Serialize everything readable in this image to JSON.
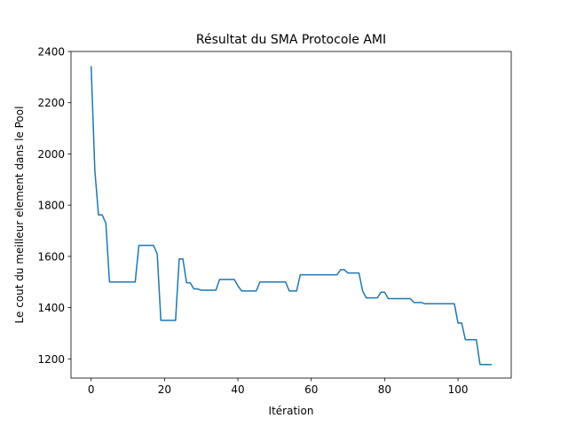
{
  "chart_data": {
    "type": "line",
    "title": "Résultat du SMA Protocole AMI",
    "xlabel": "Itération",
    "ylabel": "Le cout du meilleur element dans le Pool",
    "xlim": [
      -5.5,
      114.5
    ],
    "ylim": [
      1125,
      2400
    ],
    "xticks": [
      0,
      20,
      40,
      60,
      80,
      100
    ],
    "yticks": [
      1200,
      1400,
      1600,
      1800,
      2000,
      2200,
      2400
    ],
    "grid": false,
    "series": [
      {
        "color": "#1f77b4",
        "x": [
          0,
          1,
          2,
          3,
          4,
          5,
          6,
          7,
          8,
          9,
          10,
          11,
          12,
          13,
          14,
          15,
          16,
          17,
          18,
          19,
          20,
          21,
          22,
          23,
          24,
          25,
          26,
          27,
          28,
          29,
          30,
          31,
          32,
          33,
          34,
          35,
          36,
          37,
          38,
          39,
          40,
          41,
          42,
          43,
          44,
          45,
          46,
          47,
          48,
          49,
          50,
          51,
          52,
          53,
          54,
          55,
          56,
          57,
          58,
          59,
          60,
          61,
          62,
          63,
          64,
          65,
          66,
          67,
          68,
          69,
          70,
          71,
          72,
          73,
          74,
          75,
          76,
          77,
          78,
          79,
          80,
          81,
          82,
          83,
          84,
          85,
          86,
          87,
          88,
          89,
          90,
          91,
          92,
          93,
          94,
          95,
          96,
          97,
          98,
          99,
          100,
          101,
          102,
          103,
          104,
          105,
          106,
          107,
          108,
          109
        ],
        "values": [
          2340,
          1935,
          1762,
          1762,
          1730,
          1500,
          1500,
          1500,
          1500,
          1500,
          1500,
          1500,
          1500,
          1643,
          1643,
          1643,
          1643,
          1643,
          1610,
          1350,
          1350,
          1350,
          1350,
          1350,
          1590,
          1590,
          1497,
          1497,
          1473,
          1473,
          1468,
          1468,
          1468,
          1468,
          1468,
          1510,
          1510,
          1510,
          1510,
          1510,
          1485,
          1465,
          1465,
          1465,
          1465,
          1465,
          1500,
          1500,
          1500,
          1500,
          1500,
          1500,
          1500,
          1500,
          1465,
          1465,
          1465,
          1528,
          1528,
          1528,
          1528,
          1528,
          1528,
          1528,
          1528,
          1528,
          1528,
          1528,
          1548,
          1548,
          1535,
          1535,
          1535,
          1535,
          1465,
          1438,
          1438,
          1438,
          1438,
          1460,
          1460,
          1435,
          1435,
          1435,
          1435,
          1435,
          1435,
          1435,
          1420,
          1420,
          1420,
          1415,
          1415,
          1415,
          1415,
          1415,
          1415,
          1415,
          1415,
          1415,
          1340,
          1340,
          1275,
          1275,
          1275,
          1275,
          1178,
          1178,
          1178,
          1178
        ]
      }
    ]
  }
}
